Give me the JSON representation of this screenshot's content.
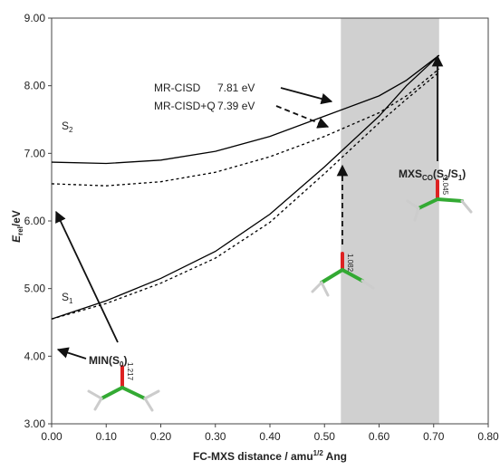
{
  "chart_data": {
    "type": "line",
    "x": [
      0,
      0.1,
      0.2,
      0.3,
      0.4,
      0.5,
      0.6,
      0.65,
      0.71
    ],
    "series": [
      {
        "color": "#000000",
        "style": "solid",
        "values": [
          6.87,
          6.85,
          6.9,
          7.03,
          7.25,
          7.55,
          7.85,
          8.08,
          8.45
        ]
      },
      {
        "color": "#000000",
        "style": "dashed",
        "values": [
          6.55,
          6.52,
          6.58,
          6.72,
          6.95,
          7.25,
          7.6,
          7.85,
          8.25
        ]
      },
      {
        "color": "#000000",
        "style": "solid",
        "values": [
          4.55,
          4.82,
          5.15,
          5.55,
          6.1,
          6.8,
          7.55,
          8.0,
          8.45
        ]
      },
      {
        "color": "#000000",
        "style": "dashed",
        "values": [
          4.55,
          4.78,
          5.08,
          5.45,
          5.98,
          6.7,
          7.45,
          7.8,
          8.2
        ]
      }
    ],
    "shaded_region": [
      0.53,
      0.71
    ],
    "shaded_color": "#d0d0d0",
    "xlim": [
      0,
      0.8
    ],
    "xticks": [
      {
        "value": 0,
        "label": "0.00"
      },
      {
        "value": 0.1,
        "label": "0.10"
      },
      {
        "value": 0.2,
        "label": "0.20"
      },
      {
        "value": 0.3,
        "label": "0.30"
      },
      {
        "value": 0.4,
        "label": "0.40"
      },
      {
        "value": 0.5,
        "label": "0.50"
      },
      {
        "value": 0.6,
        "label": "0.60"
      },
      {
        "value": 0.7,
        "label": "0.70"
      },
      {
        "value": 0.8,
        "label": "0.80"
      }
    ],
    "ylim": [
      3,
      9
    ],
    "yticks": [
      {
        "value": 3,
        "label": "3.00"
      },
      {
        "value": 4,
        "label": "4.00"
      },
      {
        "value": 5,
        "label": "5.00"
      },
      {
        "value": 6,
        "label": "6.00"
      },
      {
        "value": 7,
        "label": "7.00"
      },
      {
        "value": 8,
        "label": "8.00"
      },
      {
        "value": 9,
        "label": "9.00"
      }
    ],
    "ylabel": [
      "E",
      "rel",
      "/eV"
    ],
    "xlabel": [
      "FC-MXS distance / amu",
      "1/2",
      " Ang"
    ],
    "annotations": {
      "method1": "MR-CISD",
      "energy1": "7.81 eV",
      "method2": "MR-CISD+Q",
      "energy2": "7.39 eV",
      "s2": [
        "S",
        "2"
      ],
      "s1": [
        "S",
        "1"
      ],
      "min": [
        "MIN(S",
        "0",
        ")"
      ],
      "mxs": [
        "MXS",
        "CO",
        "(S",
        "2",
        "/S",
        "1",
        ")"
      ],
      "bond_min": "1.217",
      "bond_mid": "1.082",
      "bond_mxs": "1.045"
    }
  }
}
